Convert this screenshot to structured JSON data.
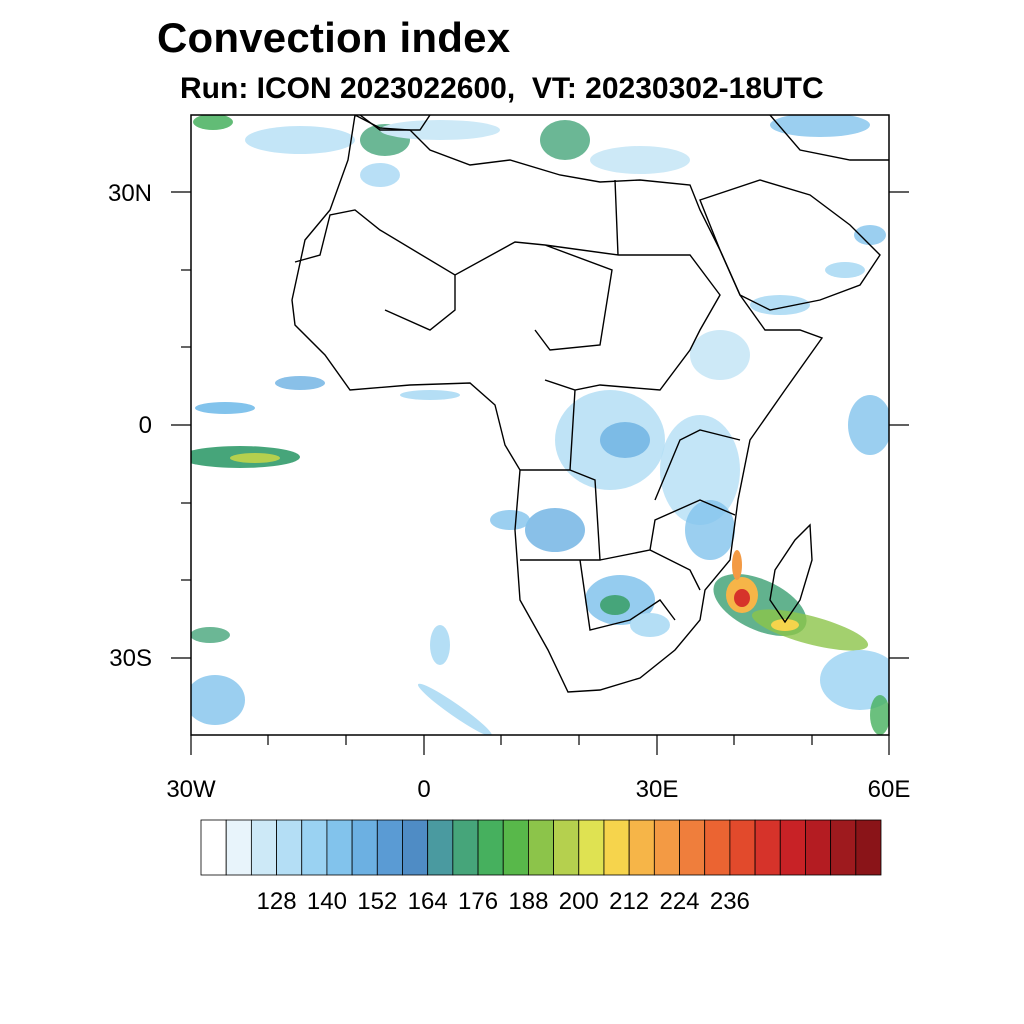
{
  "title": "Convection index",
  "subtitle": "Run: ICON 2023022600,  VT: 20230302-18UTC",
  "map": {
    "lon_range": [
      -30,
      60
    ],
    "lat_range": [
      -40,
      40
    ],
    "lat_labels": [
      "30N",
      "0",
      "30S"
    ],
    "lon_labels": [
      "30W",
      "0",
      "30E",
      "60E"
    ]
  },
  "colorbar": {
    "labels": [
      "128",
      "140",
      "152",
      "164",
      "176",
      "188",
      "200",
      "212",
      "224",
      "236"
    ],
    "colors": [
      "#ffffff",
      "#e8f4fb",
      "#cde9f7",
      "#b4def5",
      "#9ad2f2",
      "#82c3ec",
      "#6cb0e2",
      "#5a9bd4",
      "#4f8cc5",
      "#4a9aa0",
      "#46a57a",
      "#46b05e",
      "#58b84a",
      "#8cc44a",
      "#b5d04e",
      "#dfe252",
      "#f6d44c",
      "#f6b548",
      "#f39a44",
      "#ef7e3c",
      "#eb6432",
      "#e24a2c",
      "#d6332a",
      "#c82226",
      "#b41c22",
      "#9e1a1e",
      "#8a1418"
    ]
  }
}
